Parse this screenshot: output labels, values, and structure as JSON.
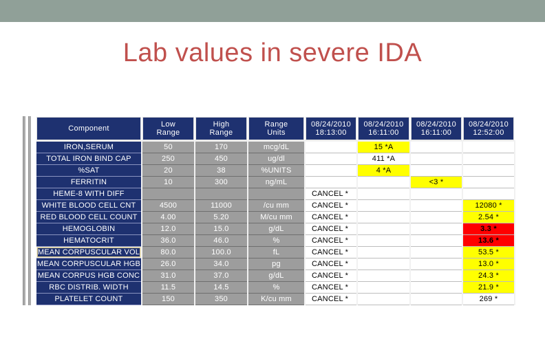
{
  "slide": {
    "title": "Lab values in severe IDA"
  },
  "colors": {
    "top_bar": "#90A098",
    "title_text": "#C0504D",
    "header_bg": "#1E3170",
    "component_cell_bg": "#1E3170",
    "range_cell_bg": "#9D9D9D",
    "result_cell_bg": "#FFFFFF",
    "abnormal_highlight": "#FFFF00",
    "critical_highlight": "#FF0000"
  },
  "table": {
    "headers": [
      {
        "id": "component",
        "label": "Component"
      },
      {
        "id": "low-range",
        "label": "Low\nRange"
      },
      {
        "id": "high-range",
        "label": "High\nRange"
      },
      {
        "id": "range-units",
        "label": "Range\nUnits"
      },
      {
        "id": "result-col-1",
        "label": "08/24/2010\n18:13:00"
      },
      {
        "id": "result-col-2",
        "label": "08/24/2010\n16:11:00"
      },
      {
        "id": "result-col-3",
        "label": "08/24/2010\n16:11:00"
      },
      {
        "id": "result-col-4",
        "label": "08/24/2010\n12:52:00"
      }
    ],
    "rows": [
      {
        "component": "IRON,SERUM",
        "low": "50",
        "high": "170",
        "units": "mcg/dL",
        "results": [
          {
            "v": ""
          },
          {
            "v": "15 *A",
            "hl": "yellow"
          },
          {
            "v": ""
          },
          {
            "v": ""
          }
        ]
      },
      {
        "component": "TOTAL IRON BIND CAP",
        "low": "250",
        "high": "450",
        "units": "ug/dl",
        "results": [
          {
            "v": ""
          },
          {
            "v": "411 *A"
          },
          {
            "v": ""
          },
          {
            "v": ""
          }
        ]
      },
      {
        "component": "%SAT",
        "low": "20",
        "high": "38",
        "units": "%UNITS",
        "results": [
          {
            "v": ""
          },
          {
            "v": "4 *A",
            "hl": "yellow"
          },
          {
            "v": ""
          },
          {
            "v": ""
          }
        ]
      },
      {
        "component": "FERRITIN",
        "low": "10",
        "high": "300",
        "units": "ng/mL",
        "results": [
          {
            "v": ""
          },
          {
            "v": ""
          },
          {
            "v": "<3 *",
            "hl": "yellow"
          },
          {
            "v": ""
          }
        ]
      },
      {
        "component": "HEME-8 WITH DIFF",
        "low": "",
        "high": "",
        "units": "",
        "results": [
          {
            "v": "CANCEL *"
          },
          {
            "v": ""
          },
          {
            "v": ""
          },
          {
            "v": ""
          }
        ]
      },
      {
        "component": "WHITE BLOOD CELL CNT",
        "low": "4500",
        "high": "11000",
        "units": "/cu mm",
        "results": [
          {
            "v": "CANCEL *"
          },
          {
            "v": ""
          },
          {
            "v": ""
          },
          {
            "v": "12080 *",
            "hl": "yellow"
          }
        ]
      },
      {
        "component": "RED BLOOD CELL COUNT",
        "low": "4.00",
        "high": "5.20",
        "units": "M/cu mm",
        "results": [
          {
            "v": "CANCEL *"
          },
          {
            "v": ""
          },
          {
            "v": ""
          },
          {
            "v": "2.54 *",
            "hl": "yellow"
          }
        ]
      },
      {
        "component": "HEMOGLOBIN",
        "low": "12.0",
        "high": "15.0",
        "units": "g/dL",
        "results": [
          {
            "v": "CANCEL *"
          },
          {
            "v": ""
          },
          {
            "v": ""
          },
          {
            "v": "3.3 *",
            "hl": "red"
          }
        ]
      },
      {
        "component": "HEMATOCRIT",
        "low": "36.0",
        "high": "46.0",
        "units": "%",
        "results": [
          {
            "v": "CANCEL *"
          },
          {
            "v": ""
          },
          {
            "v": ""
          },
          {
            "v": "13.6 *",
            "hl": "red"
          }
        ]
      },
      {
        "component": "MEAN CORPUSCULAR VOL",
        "selected": true,
        "low": "80.0",
        "high": "100.0",
        "units": "fL",
        "results": [
          {
            "v": "CANCEL *"
          },
          {
            "v": ""
          },
          {
            "v": ""
          },
          {
            "v": "53.5 *",
            "hl": "yellow"
          }
        ]
      },
      {
        "component": "MEAN CORPUSCULAR HGB",
        "low": "26.0",
        "high": "34.0",
        "units": "pg",
        "results": [
          {
            "v": "CANCEL *"
          },
          {
            "v": ""
          },
          {
            "v": ""
          },
          {
            "v": "13.0 *",
            "hl": "yellow"
          }
        ]
      },
      {
        "component": "MEAN CORPUS HGB CONC",
        "low": "31.0",
        "high": "37.0",
        "units": "g/dL",
        "results": [
          {
            "v": "CANCEL *"
          },
          {
            "v": ""
          },
          {
            "v": ""
          },
          {
            "v": "24.3 *",
            "hl": "yellow"
          }
        ]
      },
      {
        "component": "RBC DISTRIB. WIDTH",
        "low": "11.5",
        "high": "14.5",
        "units": "%",
        "results": [
          {
            "v": "CANCEL *"
          },
          {
            "v": ""
          },
          {
            "v": ""
          },
          {
            "v": "21.9 *",
            "hl": "yellow"
          }
        ]
      },
      {
        "component": "PLATELET COUNT",
        "low": "150",
        "high": "350",
        "units": "K/cu mm",
        "results": [
          {
            "v": "CANCEL *"
          },
          {
            "v": ""
          },
          {
            "v": ""
          },
          {
            "v": "269 *"
          }
        ]
      }
    ]
  }
}
